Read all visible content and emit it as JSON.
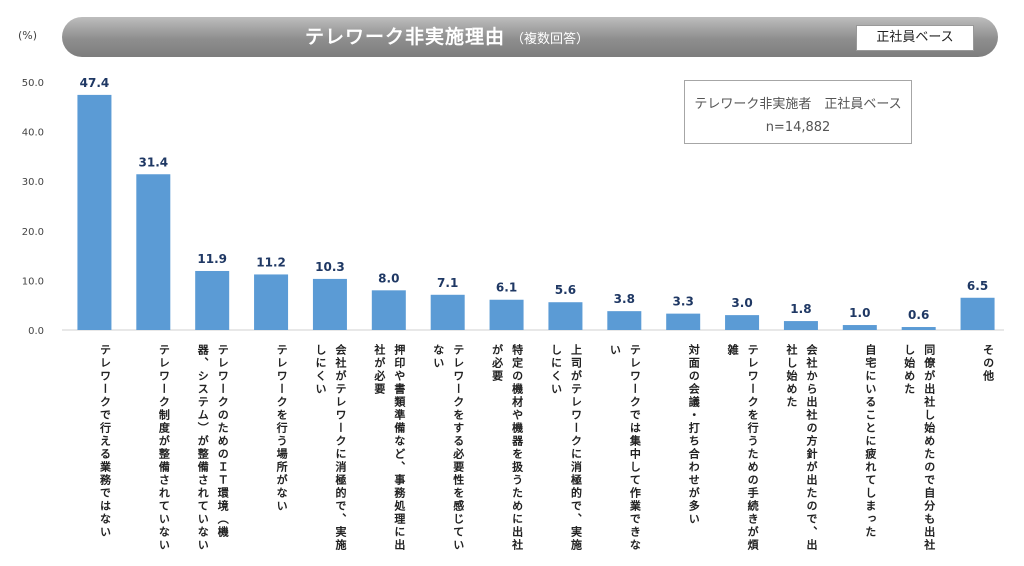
{
  "header": {
    "title": "テレワーク非実施理由",
    "subtitle": "（複数回答）",
    "badge": "正社員ベース"
  },
  "info_box": {
    "line1": "テレワーク非実施者　正社員ベース",
    "line2": "n=14,882"
  },
  "chart_data": {
    "type": "bar",
    "title": "テレワーク非実施理由（複数回答）",
    "ylabel": "(%)",
    "ylim": [
      0,
      50
    ],
    "yticks": [
      "0.0",
      "10.0",
      "20.0",
      "30.0",
      "40.0",
      "50.0"
    ],
    "grid": false,
    "bar_color": "#5b9bd5",
    "categories": [
      "テレワークで行える業務ではない",
      "テレワーク制度が整備されていない",
      "テレワークのためのＩＴ環境（機器、システム）が整備されていない",
      "テレワークを行う場所がない",
      "会社がテレワークに消極的で、実施しにくい",
      "押印や書類準備など、事務処理に出社が必要",
      "テレワークをする必要性を感じていない",
      "特定の機材や機器を扱うために出社が必要",
      "上司がテレワークに消極的で、実施しにくい",
      "テレワークでは集中して作業できない",
      "対面の会議・打ち合わせが多い",
      "テレワークを行うための手続きが煩雑",
      "会社から出社の方針が出たので、出社し始めた",
      "自宅にいることに疲れてしまった",
      "同僚が出社し始めたので自分も出社し始めた",
      "その他"
    ],
    "values": [
      47.4,
      31.4,
      11.9,
      11.2,
      10.3,
      8.0,
      7.1,
      6.1,
      5.6,
      3.8,
      3.3,
      3.0,
      1.8,
      1.0,
      0.6,
      6.5
    ],
    "value_labels": [
      "47.4",
      "31.4",
      "11.9",
      "11.2",
      "10.3",
      "8.0",
      "7.1",
      "6.1",
      "5.6",
      "3.8",
      "3.3",
      "3.0",
      "1.8",
      "1.0",
      "0.6",
      "6.5"
    ]
  }
}
